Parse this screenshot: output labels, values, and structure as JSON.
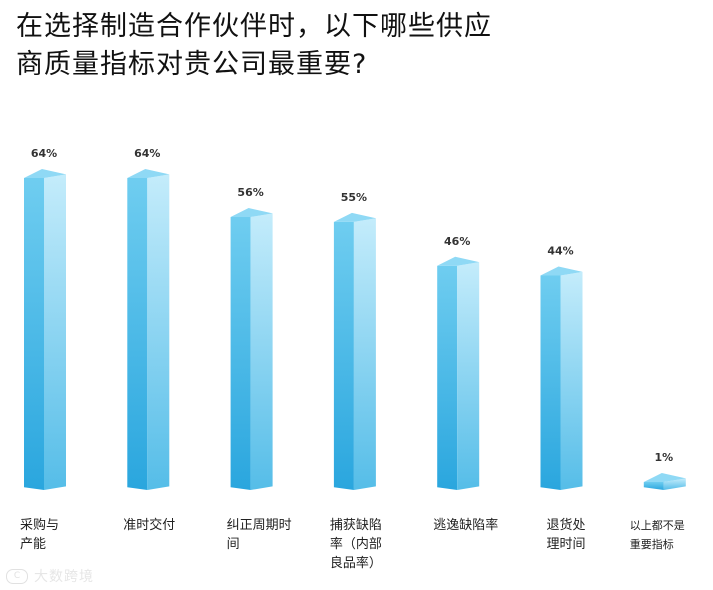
{
  "title": {
    "line1": "在选择制造合作伙伴时，以下哪些供应",
    "line2": "商质量指标对贵公司最重要?"
  },
  "chart_data": {
    "type": "bar",
    "categories": [
      [
        "采购与",
        "产能"
      ],
      [
        "准时交付"
      ],
      [
        "纠正周期时",
        "间"
      ],
      [
        "捕获缺陷",
        "率（内部",
        "良品率）"
      ],
      [
        "逃逸缺陷率"
      ],
      [
        "退货处",
        "理时间"
      ],
      [
        "以上都不是",
        "重要指标"
      ]
    ],
    "values": [
      64,
      64,
      56,
      55,
      46,
      44,
      1
    ],
    "value_labels": [
      "64%",
      "64%",
      "56%",
      "55%",
      "46%",
      "44%",
      "1%"
    ],
    "unit": "%",
    "ylim": [
      0,
      64
    ],
    "grid": false,
    "legend": "none",
    "colors": {
      "front_top": "#6fcdf0",
      "front_bottom": "#2aa6de",
      "side_top": "#c4ecfb",
      "side_bottom": "#55bde8",
      "cap": "#8fd9f5"
    }
  },
  "watermark": {
    "logo_text": "C",
    "text": "大数跨境"
  }
}
